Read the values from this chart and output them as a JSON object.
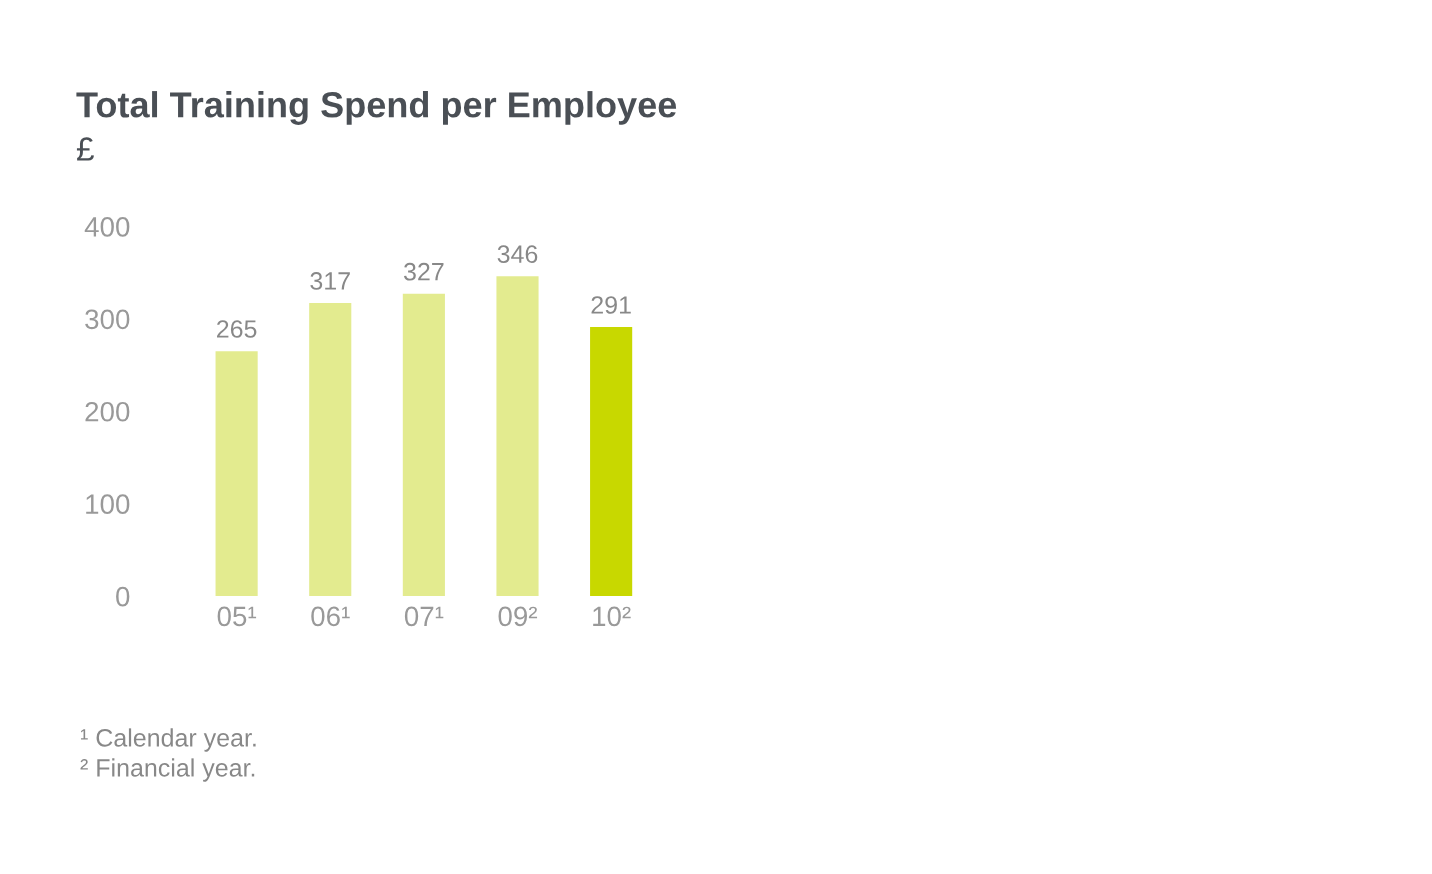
{
  "chart_data": {
    "type": "bar",
    "title": "Total Training Spend per Employee",
    "subtitle": "£",
    "categories": [
      "05¹",
      "06¹",
      "07¹",
      "09²",
      "10²"
    ],
    "values": [
      265,
      317,
      327,
      346,
      291
    ],
    "colors": [
      "#e3eb8f",
      "#e3eb8f",
      "#e3eb8f",
      "#e3eb8f",
      "#c8d800"
    ],
    "ylim": [
      0,
      400
    ],
    "yticks": [
      0,
      100,
      200,
      300,
      400
    ],
    "grid": false,
    "data_labels": true,
    "annotations": [
      "¹ Calendar year.",
      "² Financial year."
    ]
  }
}
